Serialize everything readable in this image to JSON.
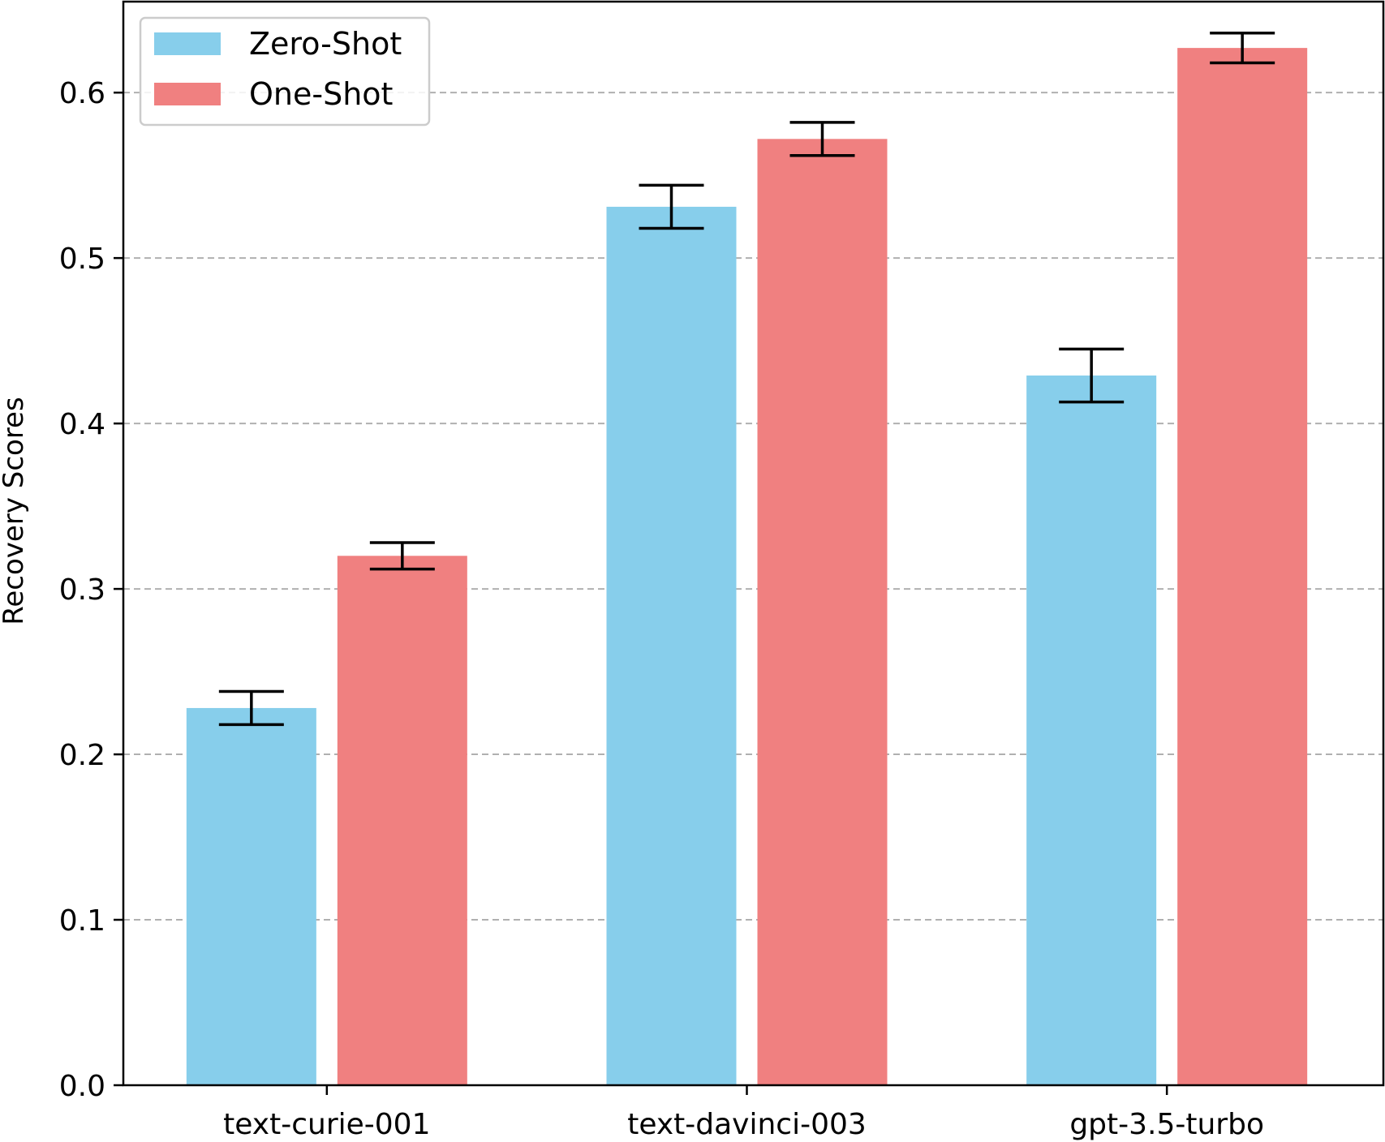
{
  "chart_data": {
    "type": "bar",
    "categories": [
      "text-curie-001",
      "text-davinci-003",
      "gpt-3.5-turbo"
    ],
    "series": [
      {
        "name": "Zero-Shot",
        "color": "#87CEEB",
        "values": [
          0.228,
          0.531,
          0.429
        ],
        "errors": [
          0.01,
          0.013,
          0.016
        ]
      },
      {
        "name": "One-Shot",
        "color": "#F08080",
        "values": [
          0.32,
          0.572,
          0.627
        ],
        "errors": [
          0.008,
          0.01,
          0.009
        ]
      }
    ],
    "ylabel": "Recovery Scores",
    "xlabel": "",
    "ylim": [
      0,
      0.655
    ],
    "yticks": [
      "0.0",
      "0.1",
      "0.2",
      "0.3",
      "0.4",
      "0.5",
      "0.6"
    ],
    "grid": "horizontal-dashed",
    "legend_position": "top-left"
  }
}
